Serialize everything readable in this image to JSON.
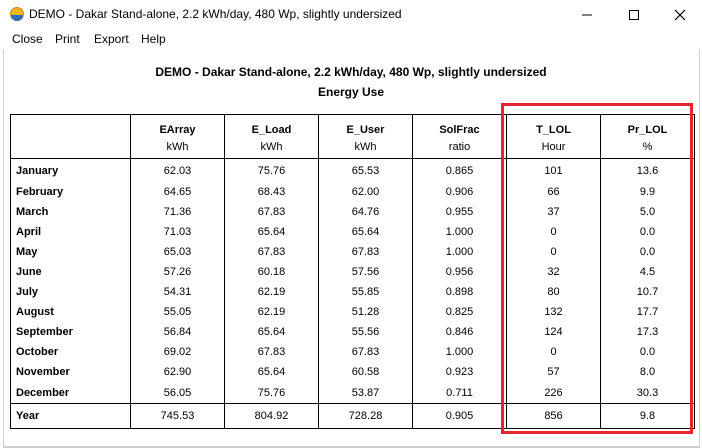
{
  "window": {
    "title": "DEMO - Dakar Stand-alone, 2.2 kWh/day, 480 Wp, slightly undersized",
    "icon": "app-sun-icon",
    "controls": [
      "minimize-icon",
      "maximize-icon",
      "close-icon"
    ]
  },
  "menu": [
    "Close",
    "Print",
    "Export",
    "Help"
  ],
  "report": {
    "title": "DEMO - Dakar Stand-alone, 2.2 kWh/day, 480 Wp, slightly undersized",
    "subtitle": "Energy Use",
    "columns": [
      {
        "name": "EArray",
        "unit": "kWh"
      },
      {
        "name": "E_Load",
        "unit": "kWh"
      },
      {
        "name": "E_User",
        "unit": "kWh"
      },
      {
        "name": "SolFrac",
        "unit": "ratio"
      },
      {
        "name": "T_LOL",
        "unit": "Hour"
      },
      {
        "name": "Pr_LOL",
        "unit": "%"
      }
    ],
    "rows": [
      {
        "label": "January",
        "values": [
          "62.03",
          "75.76",
          "65.53",
          "0.865",
          "101",
          "13.6"
        ]
      },
      {
        "label": "February",
        "values": [
          "64.65",
          "68.43",
          "62.00",
          "0.906",
          "66",
          "9.9"
        ]
      },
      {
        "label": "March",
        "values": [
          "71.36",
          "67.83",
          "64.76",
          "0.955",
          "37",
          "5.0"
        ]
      },
      {
        "label": "April",
        "values": [
          "71.03",
          "65.64",
          "65.64",
          "1.000",
          "0",
          "0.0"
        ]
      },
      {
        "label": "May",
        "values": [
          "65.03",
          "67.83",
          "67.83",
          "1.000",
          "0",
          "0.0"
        ]
      },
      {
        "label": "June",
        "values": [
          "57.26",
          "60.18",
          "57.56",
          "0.956",
          "32",
          "4.5"
        ]
      },
      {
        "label": "July",
        "values": [
          "54.31",
          "62.19",
          "55.85",
          "0.898",
          "80",
          "10.7"
        ]
      },
      {
        "label": "August",
        "values": [
          "55.05",
          "62.19",
          "51.28",
          "0.825",
          "132",
          "17.7"
        ]
      },
      {
        "label": "September",
        "values": [
          "56.84",
          "65.64",
          "55.56",
          "0.846",
          "124",
          "17.3"
        ]
      },
      {
        "label": "October",
        "values": [
          "69.02",
          "67.83",
          "67.83",
          "1.000",
          "0",
          "0.0"
        ]
      },
      {
        "label": "November",
        "values": [
          "62.90",
          "65.64",
          "60.58",
          "0.923",
          "57",
          "8.0"
        ]
      },
      {
        "label": "December",
        "values": [
          "56.05",
          "75.76",
          "53.87",
          "0.711",
          "226",
          "30.3"
        ]
      }
    ],
    "total": {
      "label": "Year",
      "values": [
        "745.53",
        "804.92",
        "728.28",
        "0.905",
        "856",
        "9.8"
      ]
    }
  },
  "highlight_color": "#e3262f"
}
